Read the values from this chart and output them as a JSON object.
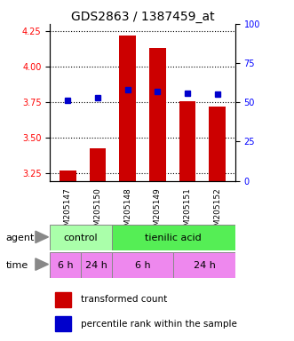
{
  "title": "GDS2863 / 1387459_at",
  "samples": [
    "GSM205147",
    "GSM205150",
    "GSM205148",
    "GSM205149",
    "GSM205151",
    "GSM205152"
  ],
  "bar_values": [
    3.27,
    3.43,
    4.22,
    4.13,
    3.76,
    3.72
  ],
  "percentile_values": [
    51,
    53,
    58,
    57,
    56,
    55
  ],
  "ylim_left": [
    3.2,
    4.3
  ],
  "ylim_right": [
    0,
    100
  ],
  "yticks_left": [
    3.25,
    3.5,
    3.75,
    4.0,
    4.25
  ],
  "yticks_right": [
    0,
    25,
    50,
    75,
    100
  ],
  "bar_color": "#cc0000",
  "dot_color": "#0000cc",
  "agent_control_color": "#aaffaa",
  "agent_tienilic_color": "#55ee55",
  "time_color": "#ee88ee",
  "legend_bar_color": "#cc0000",
  "legend_dot_color": "#0000cc",
  "legend_bar_label": "transformed count",
  "legend_dot_label": "percentile rank within the sample",
  "background_color": "#ffffff",
  "plot_bg_color": "#ffffff",
  "title_fontsize": 10,
  "tick_fontsize": 7,
  "label_fontsize": 8
}
